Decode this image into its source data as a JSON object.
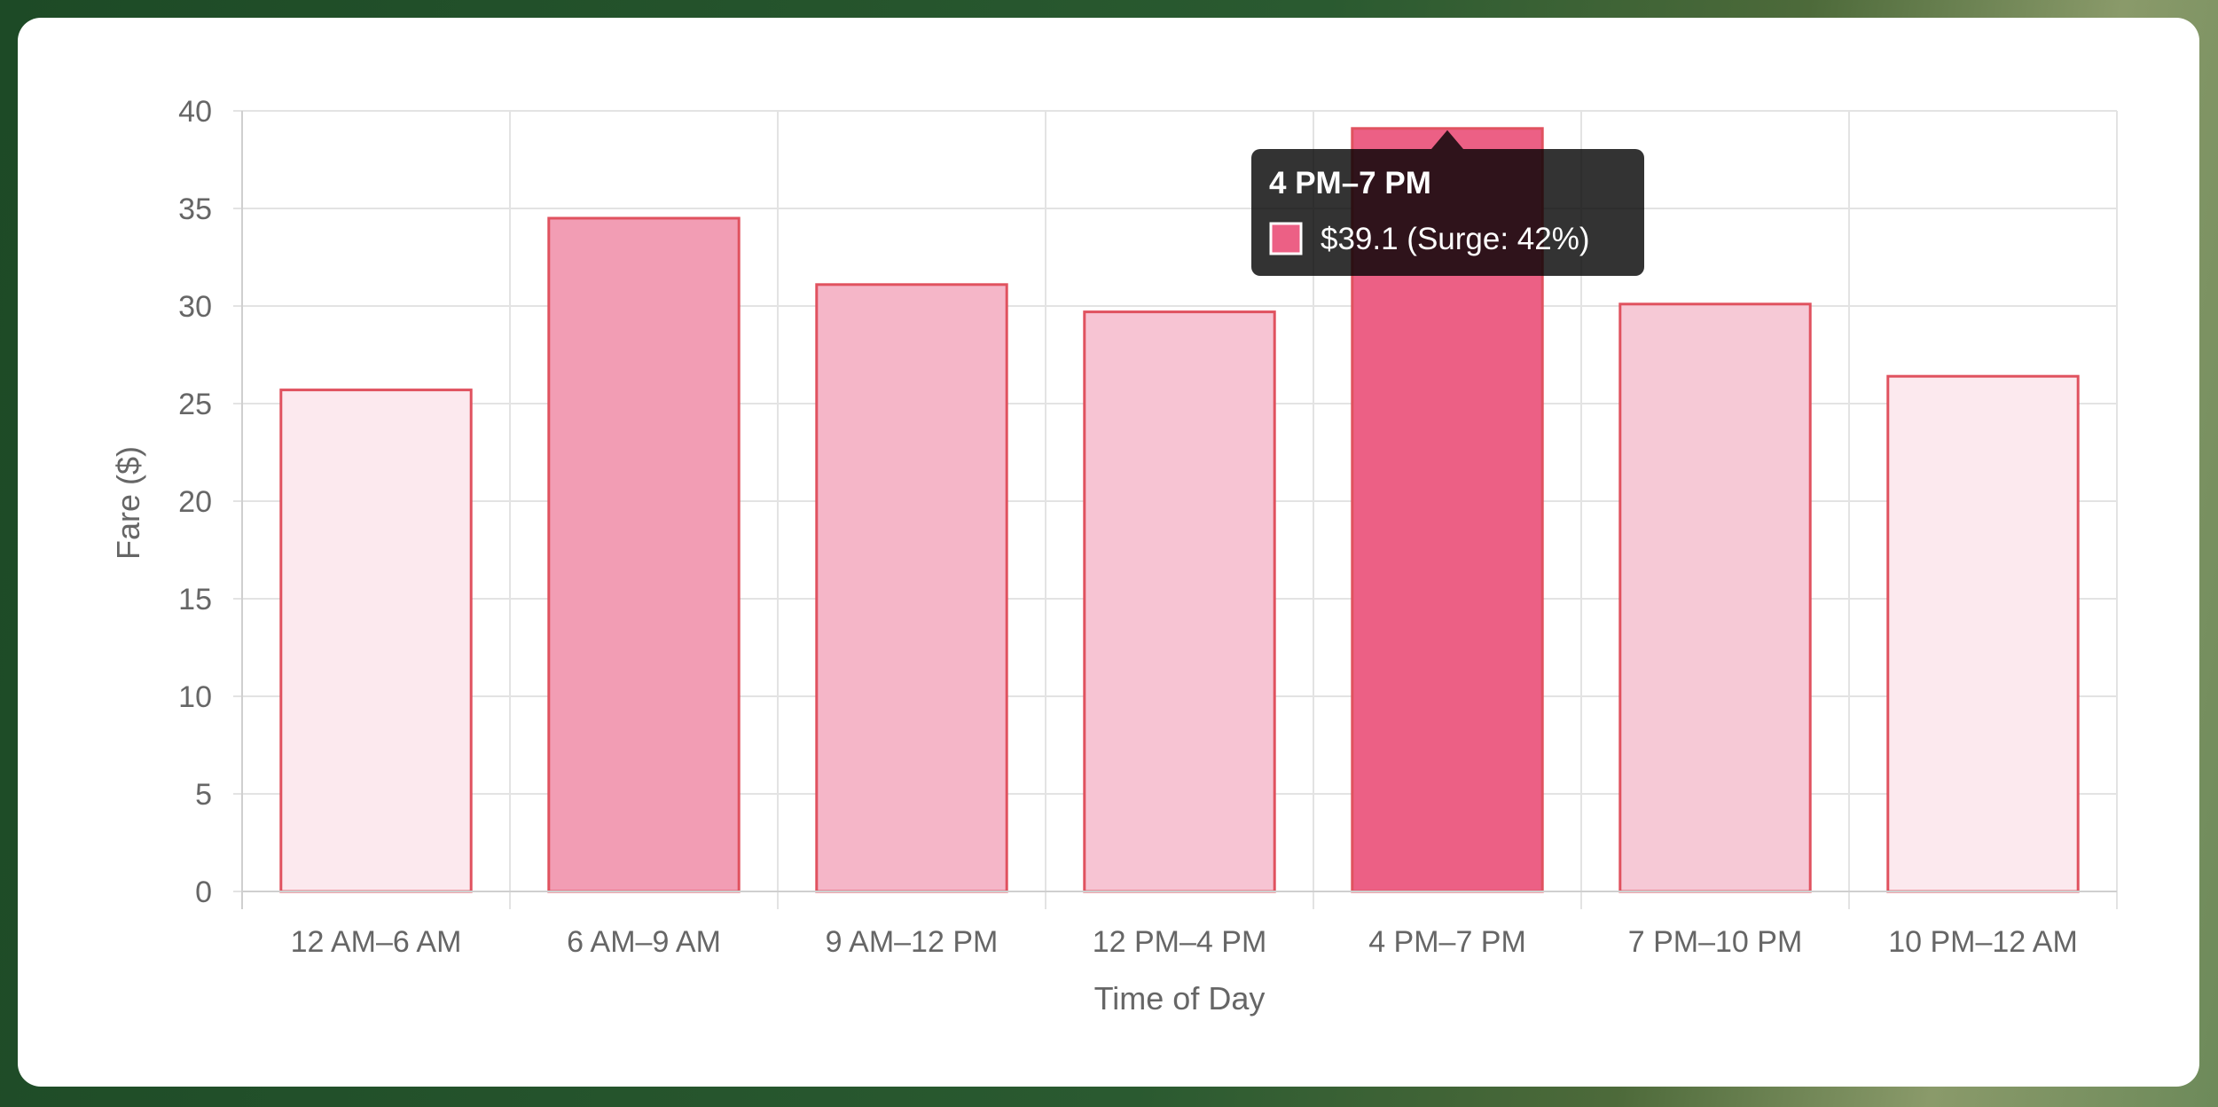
{
  "chart_data": {
    "type": "bar",
    "title": "",
    "xlabel": "Time of Day",
    "ylabel": "Fare ($)",
    "ylim": [
      0,
      40
    ],
    "yticks": [
      0,
      5,
      10,
      15,
      20,
      25,
      30,
      35,
      40
    ],
    "categories": [
      "12 AM–6 AM",
      "6 AM–9 AM",
      "9 AM–12 PM",
      "12 PM–4 PM",
      "4 PM–7 PM",
      "7 PM–10 PM",
      "10 PM–12 AM"
    ],
    "values": [
      25.7,
      34.5,
      31.1,
      29.7,
      39.1,
      30.1,
      26.4
    ],
    "bar_colors": [
      "#fce9ee",
      "#f29db4",
      "#f5b6c8",
      "#f7c4d3",
      "#ec6085",
      "#f6c9d6",
      "#fce9ee"
    ],
    "bar_border_color": "#e0525f",
    "grid": true,
    "legend": "none"
  },
  "tooltip": {
    "title": "4 PM–7 PM",
    "body": "$39.1 (Surge: 42%)",
    "swatch_color": "#ec6085",
    "category_index": 4
  }
}
